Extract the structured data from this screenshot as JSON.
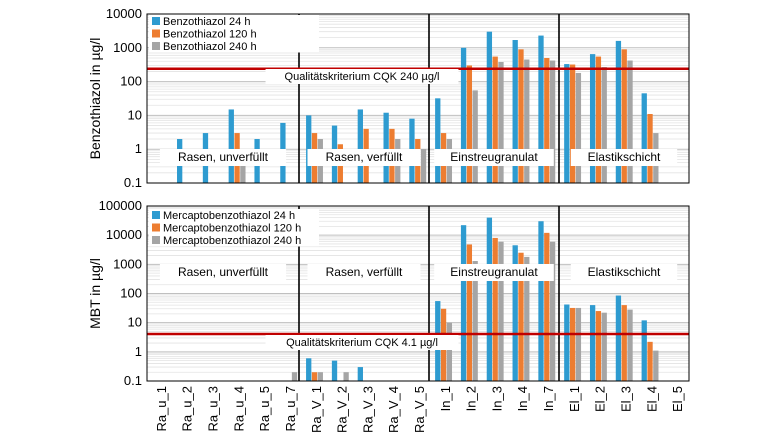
{
  "chart_data": [
    {
      "type": "bar",
      "ylabel": "Benzothiazol in µg/l",
      "yscale": "log",
      "ylim": [
        0.1,
        10000
      ],
      "yticks": [
        "0.1",
        "1",
        "10",
        "100",
        "1000",
        "10000"
      ],
      "categories": [
        "Ra_u_1",
        "Ra_u_2",
        "Ra_u_3",
        "Ra_u_4",
        "Ra_u_5",
        "Ra_u_7",
        "Ra_V_1",
        "Ra_V_2",
        "Ra_V_3",
        "Ra_V_4",
        "Ra_V_5",
        "In_1",
        "In_2",
        "In_3",
        "In_4",
        "In_7",
        "El_1",
        "El_2",
        "El_3",
        "El_4",
        "El_5"
      ],
      "series": [
        {
          "name": "Benzothiazol 24 h",
          "color": "#2e9bd0",
          "values": [
            null,
            2,
            3,
            15,
            2,
            6,
            10,
            5,
            15,
            12,
            8,
            32,
            1000,
            3000,
            1700,
            2300,
            330,
            650,
            1600,
            45,
            null
          ]
        },
        {
          "name": "Benzothiazol 120 h",
          "color": "#ed7d31",
          "values": [
            null,
            null,
            null,
            3,
            null,
            null,
            3,
            1.4,
            4,
            4,
            2,
            3,
            300,
            550,
            900,
            500,
            320,
            550,
            900,
            11,
            null
          ]
        },
        {
          "name": "Benzothiazol 240 h",
          "color": "#a5a5a5",
          "values": [
            null,
            null,
            null,
            1,
            null,
            null,
            2,
            null,
            null,
            2,
            1,
            2,
            55,
            380,
            450,
            420,
            180,
            270,
            420,
            3,
            null
          ]
        }
      ],
      "threshold": {
        "value": 240,
        "label": "Qualitätskriterium CQK 240 µg/l",
        "color": "#c00000"
      },
      "groups": [
        {
          "label": "Rasen, unverfüllt"
        },
        {
          "label": "Rasen, verfüllt"
        },
        {
          "label": "Einstreugranulat"
        },
        {
          "label": "Elastikschicht"
        }
      ],
      "legend": "top-left",
      "grid": true
    },
    {
      "type": "bar",
      "ylabel": "MBT in µg/l",
      "yscale": "log",
      "ylim": [
        0.1,
        100000
      ],
      "yticks": [
        "0.1",
        "1",
        "10",
        "100",
        "1000",
        "10000",
        "100000"
      ],
      "categories": [
        "Ra_u_1",
        "Ra_u_2",
        "Ra_u_3",
        "Ra_u_4",
        "Ra_u_5",
        "Ra_u_7",
        "Ra_V_1",
        "Ra_V_2",
        "Ra_V_3",
        "Ra_V_4",
        "Ra_V_5",
        "In_1",
        "In_2",
        "In_3",
        "In_4",
        "In_7",
        "El_1",
        "El_2",
        "El_3",
        "El_4",
        "El_5"
      ],
      "series": [
        {
          "name": "Mercaptobenzothiazol 24 h",
          "color": "#2e9bd0",
          "values": [
            null,
            null,
            null,
            null,
            null,
            null,
            0.6,
            0.5,
            0.3,
            null,
            null,
            55,
            22000,
            40000,
            4500,
            30000,
            42,
            40,
            85,
            12,
            null
          ]
        },
        {
          "name": "Mercaptobenzothiazol 120 h",
          "color": "#ed7d31",
          "values": [
            null,
            null,
            null,
            null,
            null,
            null,
            0.2,
            null,
            null,
            null,
            null,
            30,
            4800,
            8000,
            2500,
            12000,
            32,
            25,
            40,
            2.2,
            null
          ]
        },
        {
          "name": "Mercaptobenzothiazol 240 h",
          "color": "#a5a5a5",
          "values": [
            null,
            null,
            null,
            null,
            null,
            0.2,
            0.2,
            0.2,
            null,
            null,
            null,
            10,
            1300,
            6000,
            1800,
            6000,
            32,
            22,
            28,
            1.1,
            null
          ]
        }
      ],
      "threshold": {
        "value": 4.1,
        "label": "Qualitätskriterium CQK 4.1 µg/l",
        "color": "#c00000"
      },
      "groups": [
        {
          "label": "Rasen, unverfüllt"
        },
        {
          "label": "Rasen, verfüllt"
        },
        {
          "label": "Einstreugranulat"
        },
        {
          "label": "Elastikschicht"
        }
      ],
      "legend": "top-left",
      "grid": true
    }
  ]
}
